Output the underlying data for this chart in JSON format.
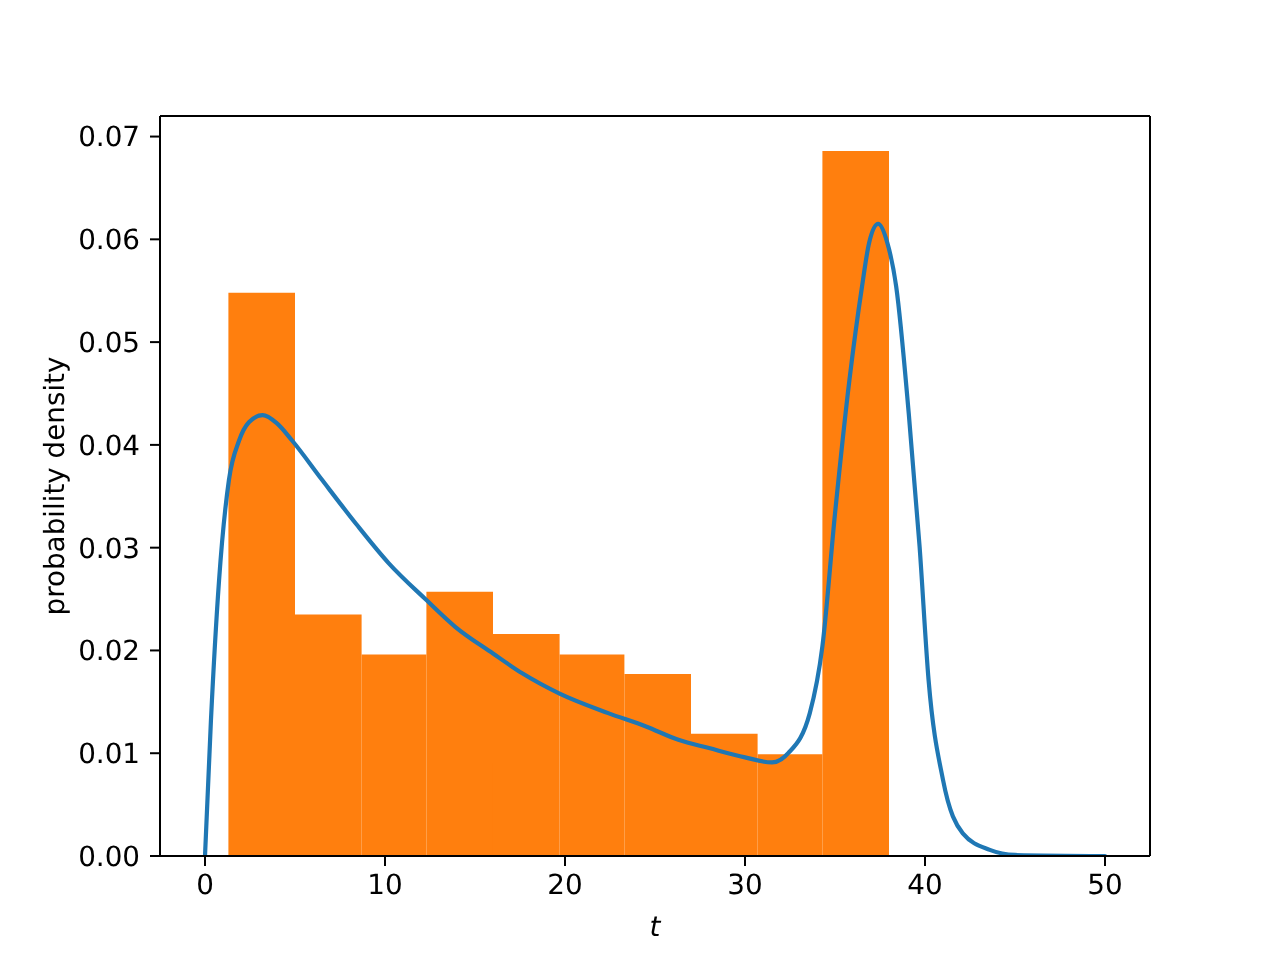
{
  "chart_data": {
    "type": "histogram",
    "xlabel": "t",
    "ylabel": "probability density",
    "xlim": [
      -2.5,
      52.5
    ],
    "xticks": [
      0,
      10,
      20,
      30,
      40,
      50
    ],
    "ylim": [
      0,
      0.072
    ],
    "yticks": [
      {
        "value": 0,
        "label": "0.00"
      },
      {
        "value": 0.01,
        "label": "0.01"
      },
      {
        "value": 0.02,
        "label": "0.02"
      },
      {
        "value": 0.03,
        "label": "0.03"
      },
      {
        "value": 0.04,
        "label": "0.04"
      },
      {
        "value": 0.05,
        "label": "0.05"
      },
      {
        "value": 0.06,
        "label": "0.06"
      },
      {
        "value": 0.07,
        "label": "0.07"
      }
    ],
    "series": [
      {
        "color": "#ff7f0e",
        "bins": [
          1.3,
          5.0,
          8.7,
          12.3,
          16.0,
          19.7,
          23.3,
          27.0,
          30.7,
          34.3,
          38.0
        ],
        "values": [
          0.0548,
          0.0235,
          0.0196,
          0.0257,
          0.0216,
          0.0196,
          0.0177,
          0.0119,
          0.0099,
          0.0686
        ]
      },
      {
        "type": "line",
        "color": "#1f77b4",
        "x": [
          0,
          0.33,
          0.78,
          1.33,
          1.89,
          2.44,
          3.2,
          4.0,
          4.85,
          6.5,
          8.4,
          10.2,
          12.3,
          13.9,
          16.0,
          17.6,
          19.7,
          22.4,
          24.5,
          26.3,
          28.0,
          30.0,
          31.5,
          32.4,
          33.6,
          34.3,
          35.0,
          35.8,
          36.5,
          36.9,
          37.4,
          37.9,
          38.4,
          39.1,
          39.7,
          40.2,
          41.0,
          42.1,
          43.6,
          45.0,
          50.0
        ],
        "values": [
          0,
          0.0132,
          0.0268,
          0.0366,
          0.0404,
          0.0422,
          0.0429,
          0.0421,
          0.0404,
          0.0366,
          0.0323,
          0.0285,
          0.0249,
          0.0223,
          0.0197,
          0.0178,
          0.0158,
          0.0139,
          0.0126,
          0.0113,
          0.0105,
          0.0096,
          0.0091,
          0.01,
          0.0139,
          0.0204,
          0.0333,
          0.0463,
          0.0554,
          0.0597,
          0.0615,
          0.0597,
          0.0554,
          0.043,
          0.0301,
          0.0171,
          0.0074,
          0.0022,
          0.0006,
          0.0001,
          0
        ]
      }
    ]
  }
}
